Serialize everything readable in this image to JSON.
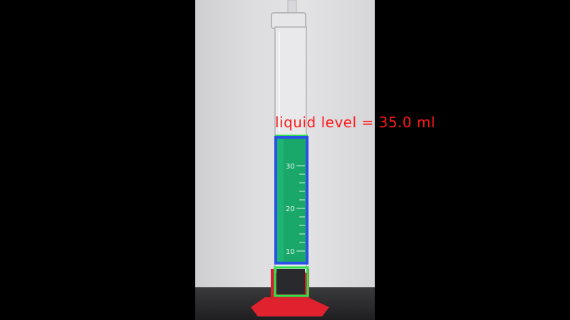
{
  "annotation": {
    "text": "liquid level = 35.0 ml",
    "text_color": "#ff1a1a",
    "liquid_box_color": "#2a52e8",
    "top_marker_color": "#2ee24a",
    "base_box_color": "#2ee24a"
  },
  "cylinder": {
    "scale_labels": [
      "30",
      "20",
      "10"
    ],
    "liquid_color": "#1aa86a",
    "base_color": "#e0222f"
  }
}
